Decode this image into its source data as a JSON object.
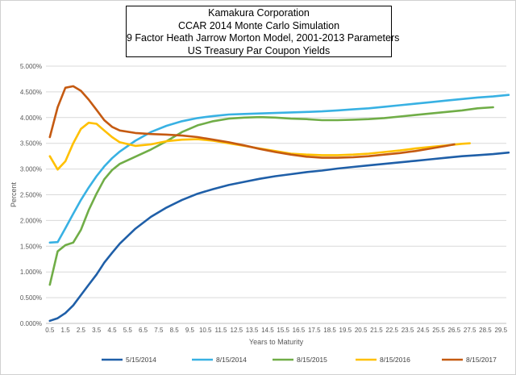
{
  "chart_data": {
    "type": "line",
    "title": [
      "Kamakura Corporation",
      "CCAR 2014 Monte Carlo Simulation",
      "9 Factor Heath Jarrow Morton Model, 2001-2013 Parameters",
      "US Treasury Par Coupon Yields"
    ],
    "xlabel": "Years to Maturity",
    "ylabel": "Percent",
    "ylim": [
      0,
      5
    ],
    "yticks": [
      "0.000%",
      "0.500%",
      "1.000%",
      "1.500%",
      "2.000%",
      "2.500%",
      "3.000%",
      "3.500%",
      "4.000%",
      "4.500%",
      "5.000%"
    ],
    "xticks": [
      "0.5",
      "1.5",
      "2.5",
      "3.5",
      "4.5",
      "5.5",
      "6.5",
      "7.5",
      "8.5",
      "9.5",
      "10.5",
      "11.5",
      "12.5",
      "13.5",
      "14.5",
      "15.5",
      "16.5",
      "17.5",
      "18.5",
      "19.5",
      "20.5",
      "21.5",
      "22.5",
      "23.5",
      "24.5",
      "25.5",
      "26.5",
      "27.5",
      "28.5",
      "29.5"
    ],
    "grid": "horizontal",
    "legend_position": "bottom",
    "series": [
      {
        "name": "5/15/2014",
        "color": "#1f5fa8",
        "x": [
          0.5,
          1,
          1.5,
          2,
          2.5,
          3,
          3.5,
          4,
          4.5,
          5,
          6,
          7,
          8,
          9,
          10,
          11,
          12,
          13,
          14,
          15,
          16,
          17,
          18,
          19,
          20,
          21,
          22,
          23,
          24,
          25,
          26,
          27,
          28,
          29,
          30
        ],
        "y": [
          0.05,
          0.1,
          0.2,
          0.35,
          0.55,
          0.75,
          0.95,
          1.18,
          1.37,
          1.55,
          1.84,
          2.07,
          2.25,
          2.4,
          2.52,
          2.61,
          2.69,
          2.75,
          2.81,
          2.86,
          2.9,
          2.94,
          2.97,
          3.01,
          3.04,
          3.07,
          3.1,
          3.13,
          3.16,
          3.19,
          3.22,
          3.25,
          3.27,
          3.29,
          3.32
        ]
      },
      {
        "name": "8/15/2014",
        "color": "#38b1e3",
        "x": [
          0.5,
          1,
          1.5,
          2,
          2.5,
          3,
          3.5,
          4,
          4.5,
          5,
          6,
          7,
          8,
          9,
          10,
          11,
          12,
          13,
          14,
          15,
          16,
          17,
          18,
          19,
          20,
          21,
          22,
          23,
          24,
          25,
          26,
          27,
          28,
          29,
          30
        ],
        "y": [
          1.57,
          1.58,
          1.85,
          2.13,
          2.4,
          2.64,
          2.86,
          3.05,
          3.21,
          3.34,
          3.55,
          3.72,
          3.84,
          3.93,
          3.99,
          4.03,
          4.06,
          4.07,
          4.08,
          4.09,
          4.1,
          4.11,
          4.12,
          4.14,
          4.16,
          4.18,
          4.21,
          4.24,
          4.27,
          4.3,
          4.33,
          4.36,
          4.39,
          4.41,
          4.44
        ]
      },
      {
        "name": "8/15/2015",
        "color": "#70ad47",
        "x": [
          0.5,
          1,
          1.5,
          2,
          2.5,
          3,
          3.5,
          4,
          4.5,
          5,
          6,
          7,
          8,
          9,
          10,
          11,
          12,
          13,
          14,
          15,
          16,
          17,
          18,
          19,
          20,
          21,
          22,
          23,
          24,
          25,
          26,
          27,
          28,
          29
        ],
        "y": [
          0.75,
          1.4,
          1.52,
          1.57,
          1.82,
          2.2,
          2.52,
          2.8,
          2.98,
          3.1,
          3.24,
          3.38,
          3.54,
          3.72,
          3.85,
          3.93,
          3.98,
          4.0,
          4.01,
          4.0,
          3.98,
          3.97,
          3.95,
          3.95,
          3.96,
          3.97,
          3.99,
          4.02,
          4.05,
          4.08,
          4.11,
          4.14,
          4.18,
          4.2
        ]
      },
      {
        "name": "8/15/2016",
        "color": "#ffc000",
        "x": [
          0.5,
          1,
          1.5,
          2,
          2.5,
          3,
          3.5,
          4,
          4.5,
          5,
          6,
          7,
          8,
          9,
          10,
          11,
          12,
          13,
          14,
          15,
          16,
          17,
          18,
          19,
          20,
          21,
          22,
          23,
          24,
          25,
          26,
          27,
          27.5
        ],
        "y": [
          3.25,
          2.99,
          3.15,
          3.5,
          3.78,
          3.9,
          3.88,
          3.75,
          3.62,
          3.52,
          3.45,
          3.48,
          3.54,
          3.57,
          3.58,
          3.55,
          3.5,
          3.45,
          3.4,
          3.35,
          3.3,
          3.28,
          3.27,
          3.27,
          3.28,
          3.3,
          3.33,
          3.36,
          3.4,
          3.43,
          3.46,
          3.49,
          3.5
        ]
      },
      {
        "name": "8/15/2017",
        "color": "#c55a11",
        "x": [
          0.5,
          1,
          1.5,
          2,
          2.5,
          3,
          3.5,
          4,
          4.5,
          5,
          6,
          7,
          8,
          9,
          10,
          11,
          12,
          13,
          14,
          15,
          16,
          17,
          18,
          19,
          20,
          21,
          22,
          23,
          24,
          25,
          26,
          26.5
        ],
        "y": [
          3.62,
          4.2,
          4.58,
          4.61,
          4.52,
          4.35,
          4.15,
          3.95,
          3.82,
          3.75,
          3.7,
          3.68,
          3.67,
          3.65,
          3.62,
          3.57,
          3.52,
          3.46,
          3.39,
          3.33,
          3.28,
          3.24,
          3.22,
          3.22,
          3.23,
          3.25,
          3.28,
          3.31,
          3.35,
          3.4,
          3.45,
          3.48
        ]
      }
    ]
  }
}
